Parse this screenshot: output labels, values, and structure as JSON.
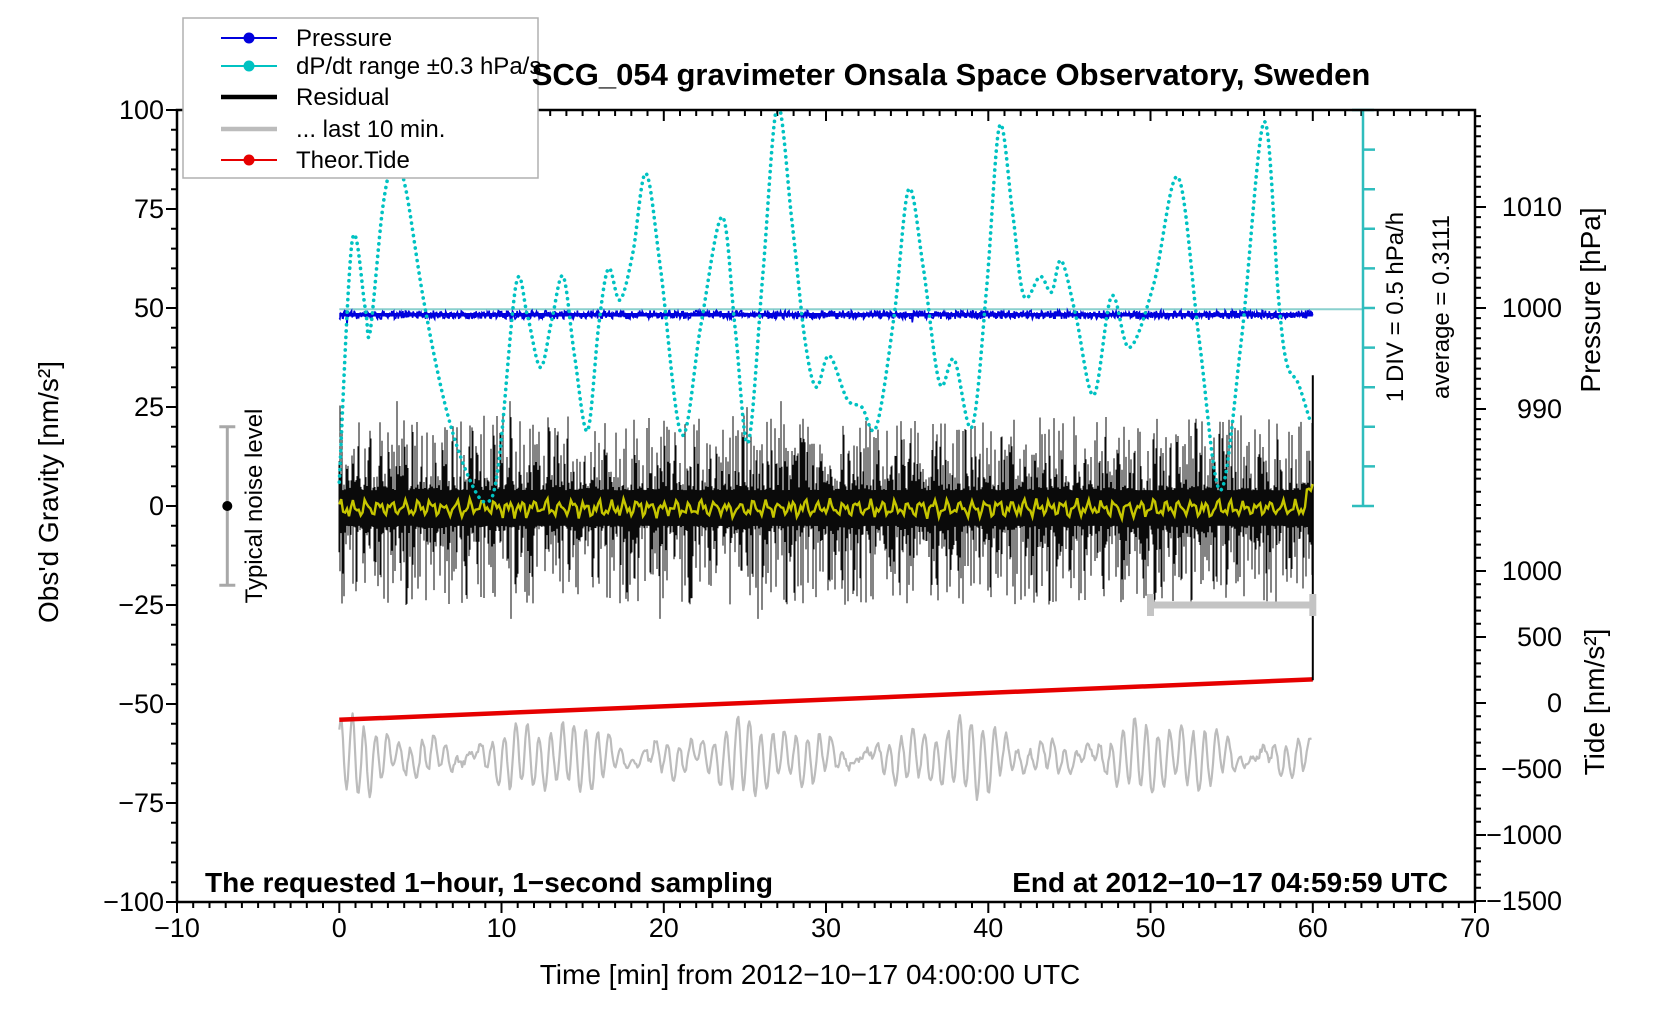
{
  "title": "SCG_054 gravimeter Onsala Space Observatory, Sweden",
  "legend": {
    "items": [
      {
        "label": "Pressure",
        "color": "#0000dd",
        "style": "dot-line"
      },
      {
        "label": "dP/dt range ±0.3 hPa/s",
        "color": "#00c2c2",
        "style": "dot-line"
      },
      {
        "label": "Residual",
        "color": "#000000",
        "style": "thick-line"
      },
      {
        "label": "... last 10 min.",
        "color": "#bcbcbc",
        "style": "thick-line"
      },
      {
        "label": "Theor.Tide",
        "color": "#e60000",
        "style": "dot-line"
      }
    ]
  },
  "annotations": {
    "noise_label": "Typical noise level",
    "div_label": "1 DIV = 0.5 hPa/h",
    "avg_label": "average = 0.3111",
    "bottom_left": "The requested 1−hour, 1−second sampling",
    "bottom_right": "End at 2012−10−17 04:59:59 UTC"
  },
  "axes": {
    "x": {
      "label": "Time [min] from 2012−10−17 04:00:00 UTC",
      "min": -10,
      "max": 70,
      "major": 10,
      "minor": 1,
      "tick_labels": [
        -10,
        0,
        10,
        20,
        30,
        40,
        50,
        60,
        70
      ]
    },
    "y_left": {
      "label": "Obs'd Gravity [nm/s²]",
      "min": -100,
      "max": 100,
      "major": 25,
      "minor": 5,
      "tick_labels": [
        100,
        75,
        50,
        25,
        0,
        -25,
        -50,
        -75,
        -100
      ]
    },
    "y_right_pressure": {
      "label": "Pressure [hPa]",
      "tick_labels": [
        1010,
        1000,
        990
      ],
      "minor_hpa": 1
    },
    "y_right_tide": {
      "label": "Tide [nm/s²]",
      "tick_labels": [
        1000,
        500,
        0,
        -500,
        -1000,
        -1500
      ],
      "minor": 100
    }
  },
  "chart_data": {
    "type": "line",
    "title": "SCG_054 gravimeter Onsala Space Observatory, Sweden",
    "xlabel": "Time [min] from 2012−10−17 04:00:00 UTC",
    "ylabel": "Obs'd Gravity [nm/s²]",
    "xlim": [
      -10,
      70
    ],
    "ylim": [
      -100,
      100
    ],
    "grid": false,
    "legend_position": "top-left",
    "series": {
      "pressure": {
        "name": "Pressure",
        "color": "#0000dd",
        "t_range": [
          0,
          60
        ],
        "gravity_level": 48.3,
        "mean_hPa": 999.6,
        "noise_amp_g": 2.2
      },
      "dpdt": {
        "name": "dP/dt range ±0.3 hPa/s",
        "color": "#00c2c2",
        "style": "dotted",
        "points_t_g": [
          [
            0,
            6
          ],
          [
            0.8,
            67
          ],
          [
            1.6,
            50
          ],
          [
            1.9,
            44
          ],
          [
            2.7,
            76
          ],
          [
            3.4,
            87
          ],
          [
            4.1,
            80
          ],
          [
            5.2,
            52
          ],
          [
            6.5,
            26
          ],
          [
            7.8,
            9
          ],
          [
            9,
            1
          ],
          [
            9.8,
            10
          ],
          [
            10.9,
            56
          ],
          [
            11.6,
            48
          ],
          [
            12.4,
            35
          ],
          [
            13.1,
            47
          ],
          [
            13.8,
            58
          ],
          [
            14.5,
            38
          ],
          [
            15.3,
            19
          ],
          [
            16,
            46
          ],
          [
            16.6,
            60
          ],
          [
            17.3,
            52
          ],
          [
            18.1,
            64
          ],
          [
            18.9,
            84
          ],
          [
            19.8,
            60
          ],
          [
            21.1,
            18
          ],
          [
            22.3,
            46
          ],
          [
            23.6,
            73
          ],
          [
            24.4,
            45
          ],
          [
            25.2,
            16
          ],
          [
            26.1,
            58
          ],
          [
            27,
            101
          ],
          [
            27.9,
            72
          ],
          [
            28.7,
            42
          ],
          [
            29.4,
            30
          ],
          [
            30.2,
            38
          ],
          [
            31.3,
            27
          ],
          [
            32.2,
            25
          ],
          [
            33.1,
            20
          ],
          [
            34.2,
            48
          ],
          [
            35.1,
            80
          ],
          [
            36,
            60
          ],
          [
            37,
            31
          ],
          [
            37.9,
            37
          ],
          [
            39,
            20
          ],
          [
            39.9,
            55
          ],
          [
            40.7,
            96
          ],
          [
            41.5,
            74
          ],
          [
            42.2,
            53
          ],
          [
            43.2,
            58
          ],
          [
            43.9,
            54
          ],
          [
            44.5,
            62
          ],
          [
            45.4,
            48
          ],
          [
            46.5,
            28
          ],
          [
            47.6,
            53
          ],
          [
            48.7,
            40
          ],
          [
            50.2,
            56
          ],
          [
            51.7,
            83
          ],
          [
            53,
            42
          ],
          [
            54.3,
            4
          ],
          [
            55.6,
            42
          ],
          [
            57,
            97
          ],
          [
            57.9,
            52
          ],
          [
            58.4,
            36
          ],
          [
            59.1,
            31
          ],
          [
            59.8,
            22
          ]
        ]
      },
      "residual": {
        "name": "Residual",
        "color": "#0a0a0a",
        "t_range": [
          0,
          60
        ],
        "mean": -0.5,
        "dense_halfwidth": 11,
        "spike_max": 27,
        "end_spike": {
          "t": 60,
          "from_g": 33,
          "to_g": -44
        }
      },
      "residual_smooth": {
        "name": "smoothed residual",
        "color": "#c6c600",
        "mean": -0.6,
        "amp": 1.6
      },
      "last10": {
        "name": "... last 10 min.",
        "color": "#bcbcbc",
        "t_range": [
          0,
          60
        ],
        "center": -63.5,
        "amp_range": [
          1,
          10
        ],
        "period_min": 0.72
      },
      "tide": {
        "name": "Theor.Tide",
        "color": "#e60000",
        "points_t_g": [
          [
            0,
            -54
          ],
          [
            30,
            -49.2
          ],
          [
            60,
            -43.8
          ]
        ]
      }
    },
    "markers": {
      "average_line": {
        "gravity_level": 49.7,
        "t_range": [
          0,
          63.1
        ],
        "color": "#8ad0ce",
        "value_label": "average = 0.3111"
      },
      "div_bar": {
        "x_t": 63.1,
        "g_range": [
          0,
          100
        ],
        "divisions": 10,
        "color": "#2fbdbd",
        "div_label": "1 DIV = 0.5 hPa/h"
      },
      "last10_bar": {
        "t_range": [
          50,
          60
        ],
        "g_level": -25,
        "color": "#c4c4c4"
      },
      "noise_bar": {
        "x_t": -6.9,
        "g_range": [
          -20,
          20
        ],
        "dot_g": 0,
        "color": "#a8a8a8",
        "label": "Typical noise level"
      }
    }
  }
}
